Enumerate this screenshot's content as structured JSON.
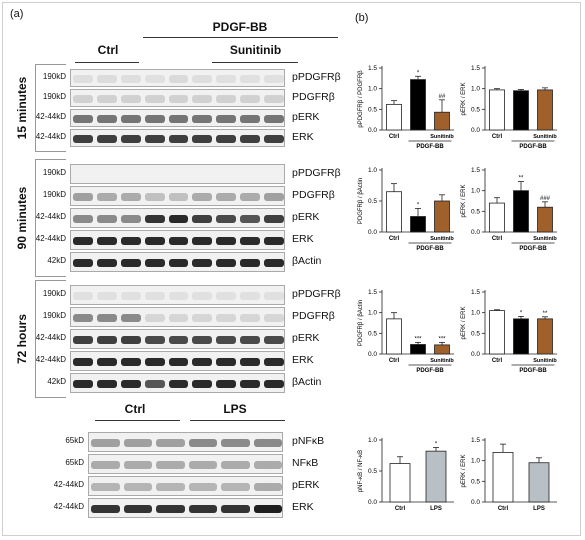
{
  "panel_a_label": "(a)",
  "panel_b_label": "(b)",
  "header": {
    "treatment": "PDGF-BB",
    "ctrl": "Ctrl",
    "sunitinib": "Sunitinib"
  },
  "header_bottom": {
    "ctrl": "Ctrl",
    "lps": "LPS"
  },
  "blocks": [
    {
      "time": "15 minutes",
      "rows": [
        {
          "kd": "190kD",
          "protein": "pPDGFRβ",
          "intensity": [
            0.06,
            0.07,
            0.06,
            0.05,
            0.08,
            0.06,
            0.05,
            0.05,
            0.05
          ]
        },
        {
          "kd": "190kD",
          "protein": "PDGFRβ",
          "intensity": [
            0.12,
            0.12,
            0.12,
            0.12,
            0.12,
            0.12,
            0.12,
            0.12,
            0.12
          ]
        },
        {
          "kd": "42-44kD",
          "protein": "pERK",
          "intensity": [
            0.55,
            0.55,
            0.55,
            0.55,
            0.55,
            0.55,
            0.55,
            0.55,
            0.55
          ]
        },
        {
          "kd": "42-44kD",
          "protein": "ERK",
          "intensity": [
            0.8,
            0.8,
            0.8,
            0.8,
            0.8,
            0.8,
            0.8,
            0.8,
            0.8
          ]
        }
      ]
    },
    {
      "time": "90 minutes",
      "rows": [
        {
          "kd": "190kD",
          "protein": "pPDGFRβ",
          "intensity": [
            0,
            0,
            0,
            0,
            0,
            0,
            0,
            0,
            0
          ]
        },
        {
          "kd": "190kD",
          "protein": "PDGFRβ",
          "intensity": [
            0.35,
            0.3,
            0.3,
            0.2,
            0.2,
            0.3,
            0.3,
            0.3,
            0.35
          ]
        },
        {
          "kd": "42-44kD",
          "protein": "pERK",
          "intensity": [
            0.45,
            0.45,
            0.45,
            0.85,
            0.9,
            0.8,
            0.75,
            0.7,
            0.8
          ]
        },
        {
          "kd": "42-44kD",
          "protein": "ERK",
          "intensity": [
            0.9,
            0.9,
            0.9,
            0.9,
            0.9,
            0.9,
            0.9,
            0.9,
            0.9
          ]
        },
        {
          "kd": "42kD",
          "protein": "βActin",
          "intensity": [
            0.9,
            0.9,
            0.9,
            0.9,
            0.9,
            0.9,
            0.9,
            0.9,
            0.9
          ]
        }
      ]
    },
    {
      "time": "72 hours",
      "rows": [
        {
          "kd": "190kD",
          "protein": "pPDGFRβ",
          "intensity": [
            0.05,
            0.05,
            0.05,
            0.05,
            0.05,
            0.05,
            0.05,
            0.05,
            0.05
          ]
        },
        {
          "kd": "190kD",
          "protein": "PDGFRβ",
          "intensity": [
            0.45,
            0.45,
            0.45,
            0.1,
            0.1,
            0.1,
            0.1,
            0.1,
            0.1
          ]
        },
        {
          "kd": "42-44kD",
          "protein": "pERK",
          "intensity": [
            0.8,
            0.8,
            0.8,
            0.75,
            0.75,
            0.75,
            0.75,
            0.75,
            0.75
          ]
        },
        {
          "kd": "42-44kD",
          "protein": "ERK",
          "intensity": [
            0.9,
            0.9,
            0.9,
            0.9,
            0.9,
            0.9,
            0.9,
            0.9,
            0.9
          ]
        },
        {
          "kd": "42kD",
          "protein": "βActin",
          "intensity": [
            0.9,
            0.9,
            0.9,
            0.7,
            0.9,
            0.9,
            0.9,
            0.9,
            0.9
          ]
        }
      ]
    },
    {
      "time": "",
      "rows": [
        {
          "kd": "65kD",
          "protein": "pNFκB",
          "intensity": [
            0.35,
            0.35,
            0.35,
            0.45,
            0.45,
            0.45
          ]
        },
        {
          "kd": "65kD",
          "protein": "NFκB",
          "intensity": [
            0.3,
            0.3,
            0.3,
            0.3,
            0.3,
            0.3
          ]
        },
        {
          "kd": "42-44kD",
          "protein": "pERK",
          "intensity": [
            0.25,
            0.25,
            0.25,
            0.25,
            0.25,
            0.3
          ]
        },
        {
          "kd": "42-44kD",
          "protein": "ERK",
          "intensity": [
            0.85,
            0.85,
            0.85,
            0.85,
            0.85,
            0.95
          ]
        }
      ]
    }
  ],
  "colors": {
    "ctrl": "#ffffff",
    "pdgf": "#000000",
    "sunitinib": "#a0602c",
    "lps": "#b8bfc5"
  },
  "chart_data": [
    {
      "type": "bar",
      "ylabel": "pPDGFRβ / PDGFRβ",
      "categories": [
        "Ctrl",
        "",
        ""
      ],
      "group_label": "PDGF-BB",
      "group_sub": "Sunitinib",
      "values": [
        0.62,
        1.22,
        0.43
      ],
      "errors": [
        0.09,
        0.08,
        0.3
      ],
      "annotations": [
        "",
        "*",
        "##"
      ],
      "ylim": [
        0,
        1.5
      ],
      "yticks": [
        "0.0",
        "0.5",
        "1.0",
        "1.5"
      ]
    },
    {
      "type": "bar",
      "ylabel": "pERK / ERK",
      "categories": [
        "Ctrl",
        "",
        ""
      ],
      "group_label": "PDGF-BB",
      "group_sub": "Sunitinib",
      "values": [
        0.97,
        0.95,
        0.97
      ],
      "errors": [
        0.03,
        0.03,
        0.05
      ],
      "annotations": [
        "",
        "",
        ""
      ],
      "ylim": [
        0,
        1.5
      ],
      "yticks": [
        "0.0",
        "0.5",
        "1.0",
        "1.5"
      ]
    },
    {
      "type": "bar",
      "ylabel": "PDGFRβ / βActin",
      "categories": [
        "Ctrl",
        "",
        ""
      ],
      "group_label": "PDGF-BB",
      "group_sub": "Sunitinib",
      "values": [
        0.65,
        0.25,
        0.5
      ],
      "errors": [
        0.13,
        0.13,
        0.1
      ],
      "annotations": [
        "",
        "*",
        ""
      ],
      "ylim": [
        0,
        1.0
      ],
      "yticks": [
        "0.0",
        "0.5",
        "1.0"
      ]
    },
    {
      "type": "bar",
      "ylabel": "pERK / ERK",
      "categories": [
        "Ctrl",
        "",
        ""
      ],
      "group_label": "PDGF-BB",
      "group_sub": "Sunitinib",
      "values": [
        0.7,
        1.0,
        0.6
      ],
      "errors": [
        0.13,
        0.22,
        0.13
      ],
      "annotations": [
        "",
        "**",
        "###"
      ],
      "ylim": [
        0,
        1.5
      ],
      "yticks": [
        "0.0",
        "0.5",
        "1.0",
        "1.5"
      ]
    },
    {
      "type": "bar",
      "ylabel": "PDGFRβ / βActin",
      "categories": [
        "Ctrl",
        "",
        ""
      ],
      "group_label": "PDGF-BB",
      "group_sub": "Sunitinib",
      "values": [
        0.85,
        0.23,
        0.22
      ],
      "errors": [
        0.15,
        0.05,
        0.06
      ],
      "annotations": [
        "",
        "***",
        "***"
      ],
      "ylim": [
        0,
        1.5
      ],
      "yticks": [
        "0.0",
        "0.5",
        "1.0",
        "1.5"
      ]
    },
    {
      "type": "bar",
      "ylabel": "pERK / ERK",
      "categories": [
        "Ctrl",
        "",
        ""
      ],
      "group_label": "PDGF-BB",
      "group_sub": "Sunitinib",
      "values": [
        1.05,
        0.85,
        0.85
      ],
      "errors": [
        0.02,
        0.06,
        0.05
      ],
      "annotations": [
        "",
        "*",
        "**"
      ],
      "ylim": [
        0,
        1.5
      ],
      "yticks": [
        "0.0",
        "0.5",
        "1.0",
        "1.5"
      ]
    },
    {
      "type": "bar",
      "ylabel": "pNF-κB / NF-κB",
      "categories": [
        "Ctrl",
        "LPS"
      ],
      "group_label": "",
      "group_sub": "",
      "values": [
        0.62,
        0.82
      ],
      "errors": [
        0.11,
        0.06
      ],
      "annotations": [
        "",
        "*"
      ],
      "ylim": [
        0,
        1.0
      ],
      "yticks": [
        "0.0",
        "0.5",
        "1.0"
      ]
    },
    {
      "type": "bar",
      "ylabel": "pERK / ERK",
      "categories": [
        "Ctrl",
        "LPS"
      ],
      "group_label": "",
      "group_sub": "",
      "values": [
        1.2,
        0.95
      ],
      "errors": [
        0.2,
        0.12
      ],
      "annotations": [
        "",
        ""
      ],
      "ylim": [
        0,
        1.5
      ],
      "yticks": [
        "0.0",
        "0.5",
        "1.0",
        "1.5"
      ]
    }
  ]
}
